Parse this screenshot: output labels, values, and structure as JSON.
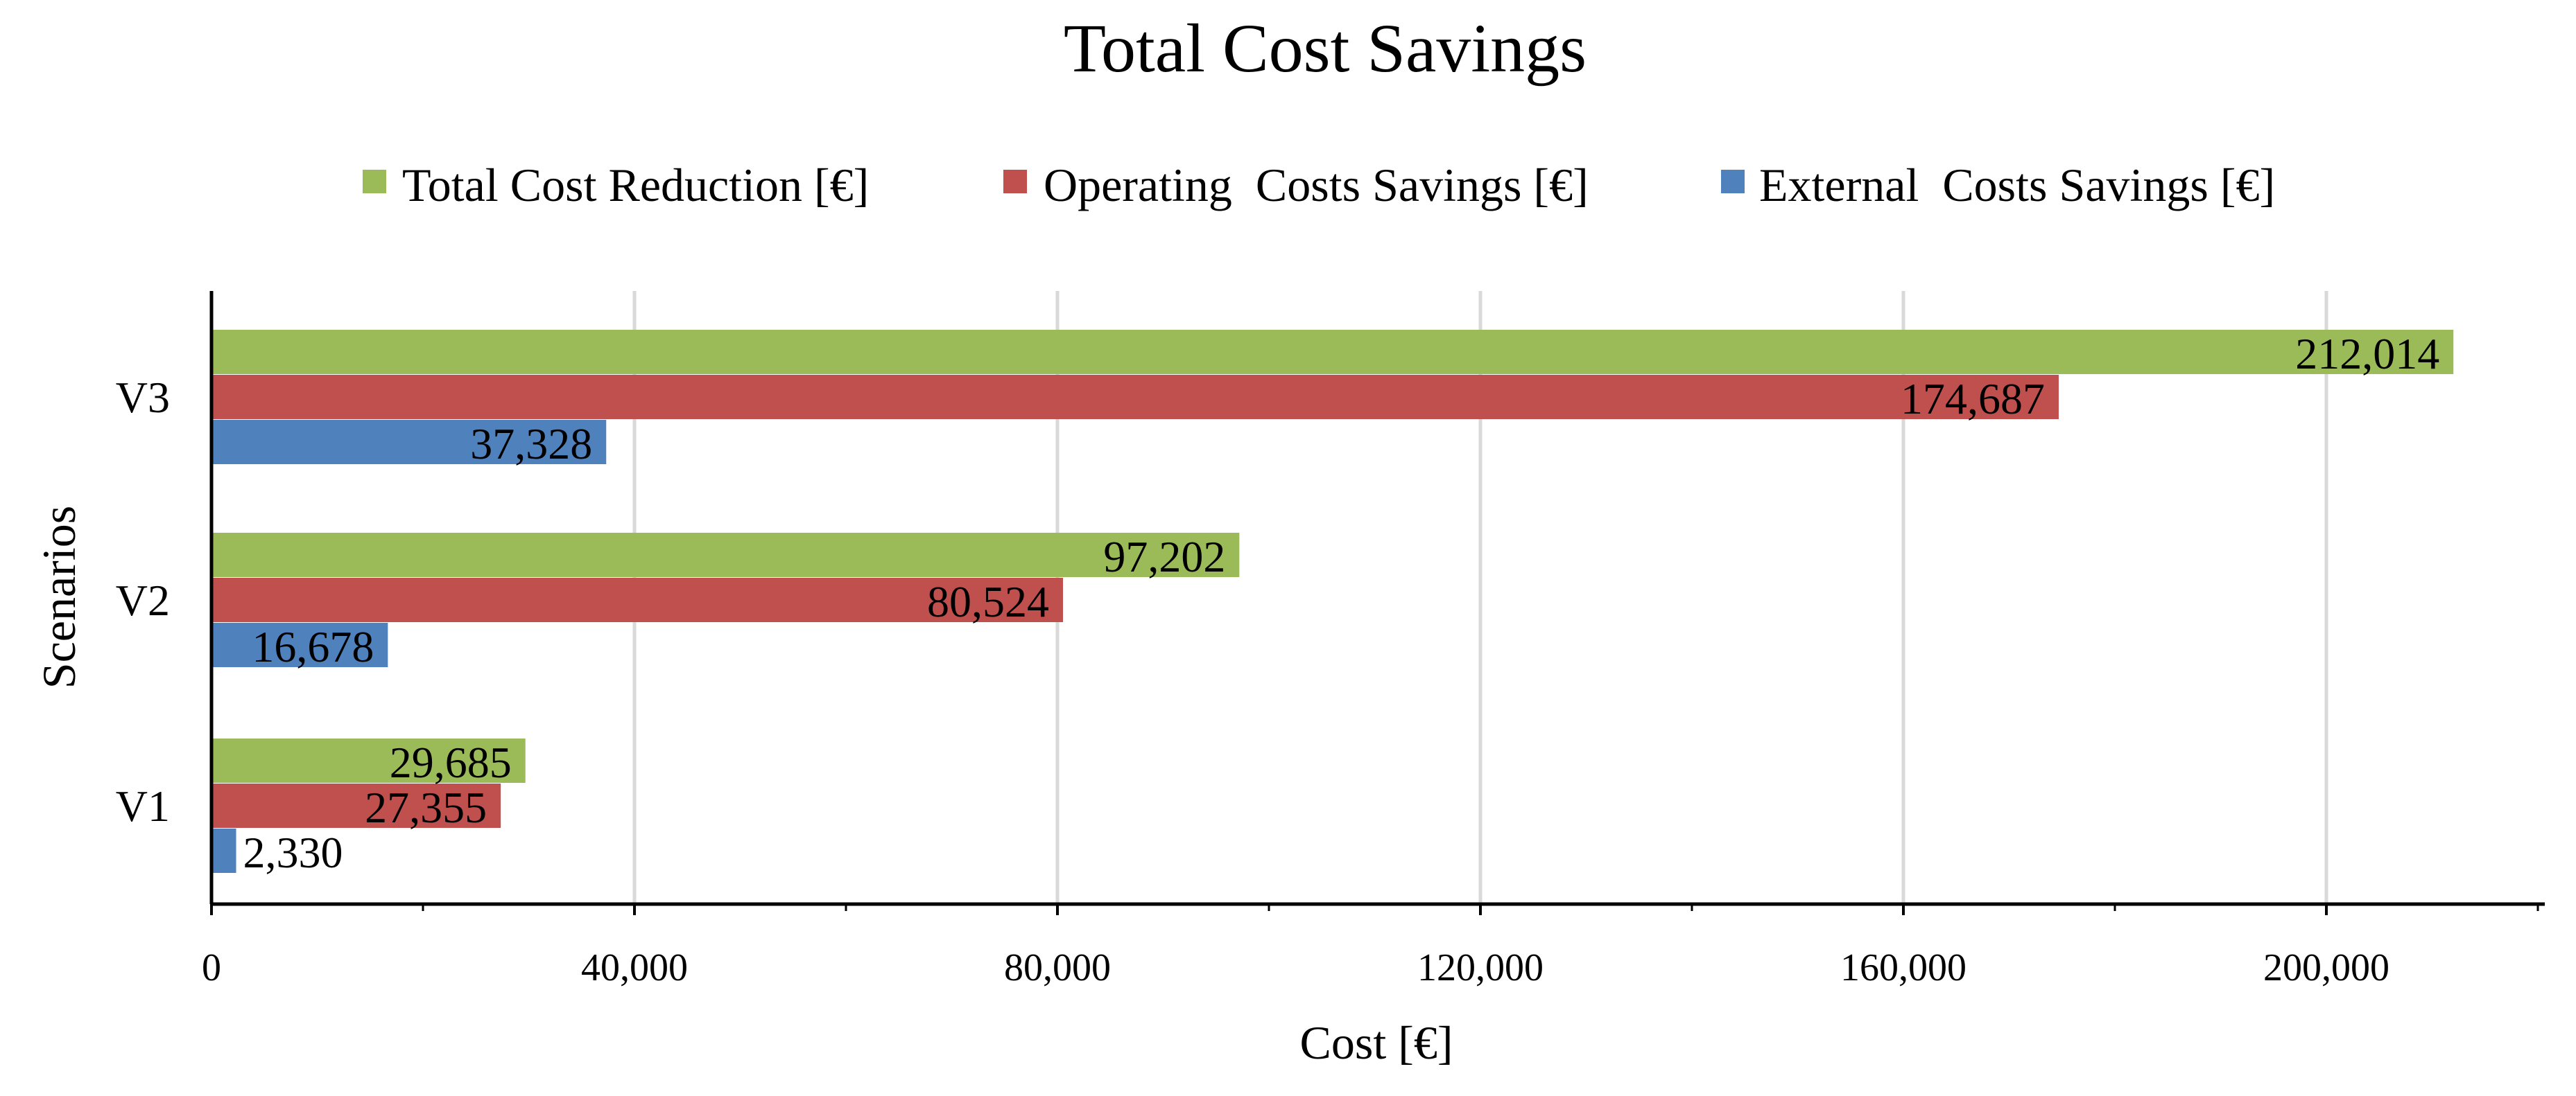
{
  "chart_data": {
    "type": "bar",
    "orientation": "horizontal",
    "title": "Total Cost Savings",
    "xlabel": "Cost [€]",
    "ylabel": "Scenarios",
    "categories": [
      "V1",
      "V2",
      "V3"
    ],
    "series": [
      {
        "name": "Total Cost Reduction [€]",
        "color": "#9BBB59",
        "values": [
          29685,
          97202,
          212014
        ],
        "labels": [
          "29,685",
          "97,202",
          "212,014"
        ]
      },
      {
        "name": "Operating  Costs Savings [€]",
        "color": "#C0504D",
        "values": [
          27355,
          80524,
          174687
        ],
        "labels": [
          "27,355",
          "80,524",
          "174,687"
        ]
      },
      {
        "name": "External  Costs Savings [€]",
        "color": "#4F81BD",
        "values": [
          2330,
          16678,
          37328
        ],
        "labels": [
          "2,330",
          "16,678",
          "37,328"
        ]
      }
    ],
    "xlim": [
      0,
      220000
    ],
    "xticks": [
      0,
      40000,
      80000,
      120000,
      160000,
      200000
    ],
    "xtick_labels": [
      "0",
      "40,000",
      "80,000",
      "120,000",
      "160,000",
      "200,000"
    ],
    "grid": true,
    "legend_position": "top"
  }
}
